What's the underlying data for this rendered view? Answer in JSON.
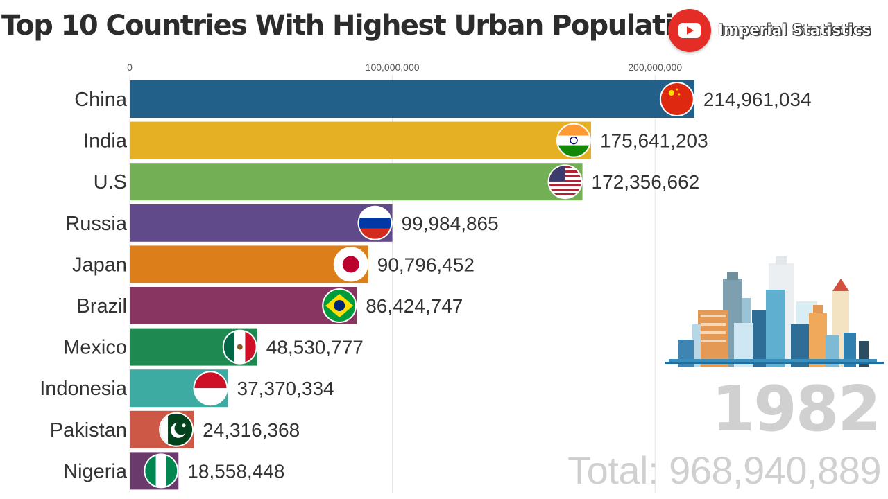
{
  "title": "Top 10 Countries With Highest Urban Population",
  "brand": {
    "name": "Imperial Statistics",
    "icon": "youtube-icon"
  },
  "year": "1982",
  "total_text": "Total: 968,940,889",
  "chart_data": {
    "type": "bar",
    "orientation": "horizontal",
    "title": "Top 10 Countries With Highest Urban Population",
    "xlim": [
      0,
      215000000
    ],
    "ticks": [
      {
        "value": 0,
        "label": "0"
      },
      {
        "value": 100000000,
        "label": "100,000,000"
      },
      {
        "value": 200000000,
        "label": "200,000,000"
      }
    ],
    "grid": true,
    "categories": [
      "China",
      "India",
      "U.S",
      "Russia",
      "Japan",
      "Brazil",
      "Mexico",
      "Indonesia",
      "Pakistan",
      "Nigeria"
    ],
    "values": [
      214961034,
      175641203,
      172356662,
      99984865,
      90796452,
      86424747,
      48530777,
      37370334,
      24316368,
      18558448
    ],
    "value_labels": [
      "214,961,034",
      "175,641,203",
      "172,356,662",
      "99,984,865",
      "90,796,452",
      "86,424,747",
      "48,530,777",
      "37,370,334",
      "24,316,368",
      "18,558,448"
    ],
    "colors": [
      "#22608a",
      "#e6b024",
      "#72af55",
      "#604a8a",
      "#dc7f1a",
      "#883562",
      "#1e8a52",
      "#3eaba3",
      "#cc5845",
      "#6a3a6c"
    ],
    "flags": [
      "china",
      "india",
      "usa",
      "russia",
      "japan",
      "brazil",
      "mexico",
      "indonesia",
      "pakistan",
      "nigeria"
    ]
  }
}
